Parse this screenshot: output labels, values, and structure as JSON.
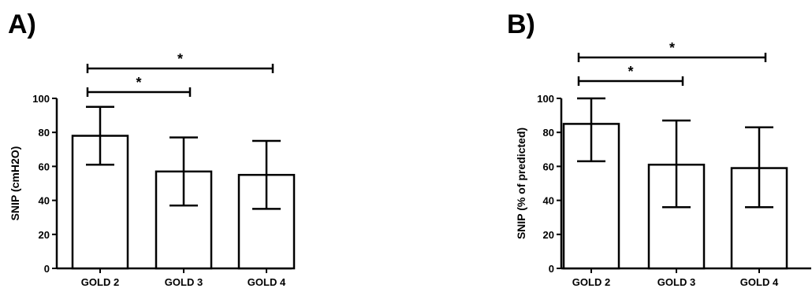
{
  "chart_data": [
    {
      "type": "bar",
      "panel_label": "A)",
      "categories": [
        "GOLD 2",
        "GOLD 3",
        "GOLD 4"
      ],
      "values": [
        78,
        57,
        55
      ],
      "error_upper": [
        95,
        77,
        75
      ],
      "error_lower": [
        61,
        37,
        35
      ],
      "ylabel": "SNIP (cmH2O)",
      "xlabel": "",
      "ylim": [
        0,
        100
      ],
      "yticks": [
        0,
        20,
        40,
        60,
        80,
        100
      ],
      "grid": false,
      "significance": [
        {
          "from": 0,
          "to": 1,
          "label": "*"
        },
        {
          "from": 0,
          "to": 2,
          "label": "*"
        }
      ]
    },
    {
      "type": "bar",
      "panel_label": "B)",
      "categories": [
        "GOLD 2",
        "GOLD 3",
        "GOLD 4"
      ],
      "values": [
        85,
        61,
        59
      ],
      "error_upper": [
        100,
        87,
        83
      ],
      "error_lower": [
        63,
        36,
        36
      ],
      "ylabel": "SNIP (% of predicted)",
      "xlabel": "",
      "ylim": [
        0,
        100
      ],
      "yticks": [
        0,
        20,
        40,
        60,
        80,
        100
      ],
      "grid": false,
      "significance": [
        {
          "from": 0,
          "to": 1,
          "label": "*"
        },
        {
          "from": 0,
          "to": 2,
          "label": "*"
        }
      ]
    }
  ]
}
